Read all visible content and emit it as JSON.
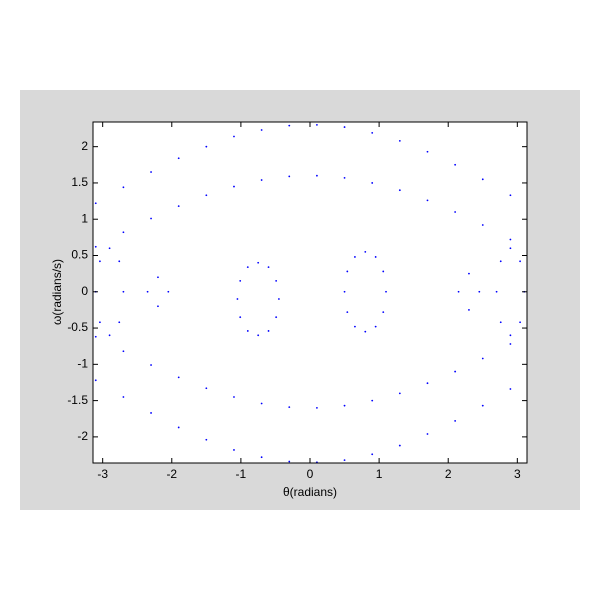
{
  "chart_data": {
    "type": "scatter",
    "xlabel": "θ(radians)",
    "ylabel": "ω(radians/s)",
    "color": "#0000ff",
    "xlim": [
      -3.14,
      3.14
    ],
    "ylim": [
      -2.36,
      2.34
    ],
    "xticks": [
      -3,
      -2,
      -1,
      0,
      1,
      2,
      3
    ],
    "yticks": [
      -2,
      -1.5,
      -1,
      -0.5,
      0,
      0.5,
      1,
      1.5,
      2
    ],
    "x": [
      -3.1,
      -2.7,
      -2.3,
      -1.9,
      -1.5,
      -1.1,
      -0.7,
      -0.3,
      0.1,
      0.5,
      0.9,
      1.3,
      1.7,
      2.1,
      2.5,
      2.9,
      -3.1,
      -2.7,
      -2.3,
      -1.9,
      -1.5,
      -1.1,
      -0.7,
      -0.3,
      0.1,
      0.5,
      0.9,
      1.3,
      1.7,
      2.1,
      2.5,
      2.9,
      -3.1,
      -2.7,
      -2.3,
      -1.9,
      -1.5,
      -1.1,
      -0.7,
      -0.3,
      0.1,
      0.5,
      0.9,
      1.3,
      1.7,
      2.1,
      2.5,
      2.9,
      -3.1,
      -2.7,
      -2.3,
      -1.9,
      -1.5,
      -1.1,
      -0.7,
      -0.3,
      0.1,
      0.5,
      0.9,
      1.3,
      1.7,
      2.1,
      2.5,
      2.9,
      -0.45,
      -0.49,
      -0.6,
      -0.75,
      -0.9,
      -1.01,
      -1.05,
      -1.01,
      -0.9,
      -0.75,
      -0.6,
      -0.49,
      1.1,
      1.06,
      0.95,
      0.8,
      0.65,
      0.54,
      0.5,
      0.54,
      0.65,
      0.8,
      0.95,
      1.06,
      -2.7,
      -2.76,
      -2.9,
      -3.04,
      -3.1,
      -3.04,
      -2.9,
      -2.76,
      3.1,
      3.04,
      2.9,
      2.76,
      2.7,
      2.76,
      2.9,
      3.04,
      -2.05,
      -2.2,
      -2.35,
      -2.2,
      2.45,
      2.3,
      2.15,
      2.3
    ],
    "y": [
      1.22,
      1.44,
      1.65,
      1.84,
      2.0,
      2.14,
      2.23,
      2.29,
      2.3,
      2.27,
      2.19,
      2.08,
      1.93,
      1.75,
      1.55,
      1.33,
      0.62,
      0.82,
      1.01,
      1.18,
      1.33,
      1.45,
      1.54,
      1.59,
      1.6,
      1.57,
      1.5,
      1.4,
      1.26,
      1.1,
      0.92,
      0.72,
      -1.22,
      -1.45,
      -1.67,
      -1.87,
      -2.04,
      -2.18,
      -2.28,
      -2.34,
      -2.35,
      -2.32,
      -2.24,
      -2.12,
      -1.96,
      -1.78,
      -1.57,
      -1.34,
      -0.62,
      -0.82,
      -1.01,
      -1.18,
      -1.33,
      -1.45,
      -1.54,
      -1.59,
      -1.6,
      -1.57,
      -1.5,
      -1.4,
      -1.26,
      -1.1,
      -0.92,
      -0.72,
      -0.1,
      0.15,
      0.34,
      0.4,
      0.34,
      0.15,
      -0.1,
      -0.35,
      -0.54,
      -0.6,
      -0.54,
      -0.35,
      0,
      0.28,
      0.48,
      0.55,
      0.48,
      0.28,
      0,
      -0.28,
      -0.48,
      -0.55,
      -0.48,
      -0.28,
      0,
      0.42,
      0.6,
      0.42,
      0,
      -0.42,
      -0.6,
      -0.42,
      0,
      0.42,
      0.6,
      0.42,
      0,
      -0.42,
      -0.6,
      -0.42,
      0,
      0.2,
      0,
      -0.2,
      0,
      0.25,
      0,
      -0.25
    ]
  }
}
